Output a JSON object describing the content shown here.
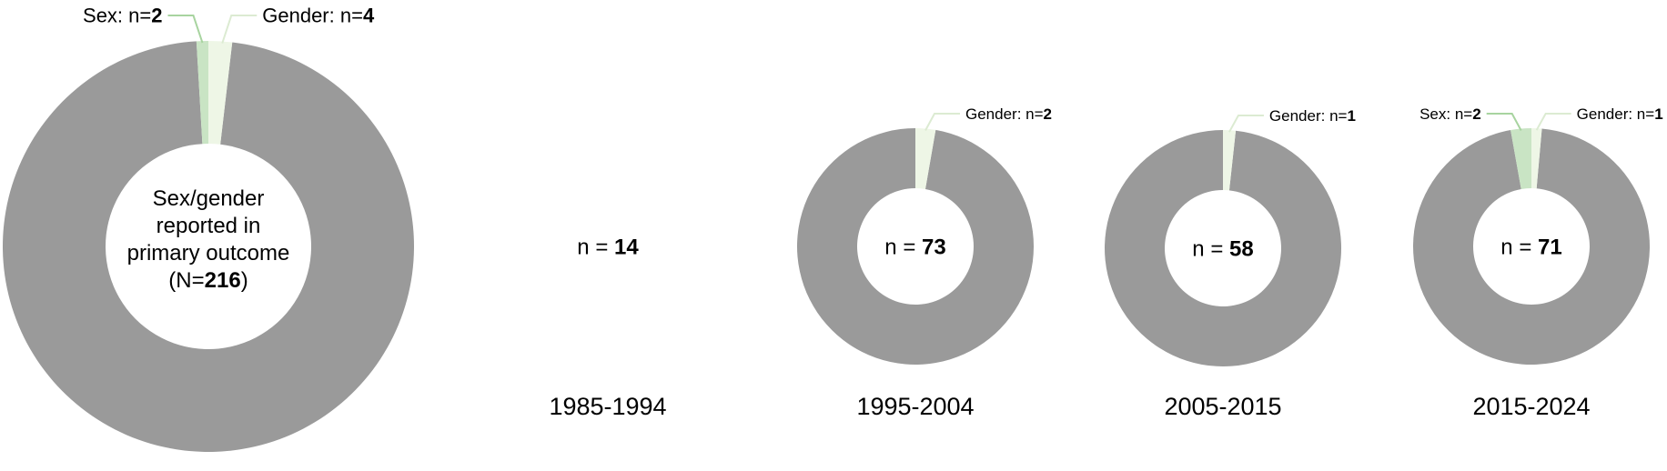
{
  "colors": {
    "other": "#9a9a9a",
    "sex": "#c9e4c4",
    "gender": "#eef6e6",
    "sex_line": "#a8d4a0",
    "gender_line": "#dcebd2",
    "hole": "#ffffff"
  },
  "chart_data": [
    {
      "type": "pie",
      "center_lines": [
        "Sex/gender",
        "reported in",
        "primary outcome"
      ],
      "center_total": {
        "prefix": "(N=",
        "value": "216",
        "suffix": ")"
      },
      "total": 216,
      "slices": [
        {
          "key": "sex",
          "prefix": "Sex: n=",
          "value": 2
        },
        {
          "key": "gender",
          "prefix": "Gender: n=",
          "value": 4
        }
      ],
      "period": ""
    },
    {
      "type": "pie",
      "center_n": {
        "prefix": "n = ",
        "value": "14"
      },
      "total": 14,
      "slices": [],
      "period": "1985-1994"
    },
    {
      "type": "pie",
      "center_n": {
        "prefix": "n = ",
        "value": "73"
      },
      "total": 73,
      "slices": [
        {
          "key": "gender",
          "prefix": "Gender: n=",
          "value": 2
        }
      ],
      "period": "1995-2004"
    },
    {
      "type": "pie",
      "center_n": {
        "prefix": "n = ",
        "value": "58"
      },
      "total": 58,
      "slices": [
        {
          "key": "gender",
          "prefix": "Gender: n=",
          "value": 1
        }
      ],
      "period": "2005-2015"
    },
    {
      "type": "pie",
      "center_n": {
        "prefix": "n = ",
        "value": "71"
      },
      "total": 71,
      "slices": [
        {
          "key": "sex",
          "prefix": "Sex: n=",
          "value": 2
        },
        {
          "key": "gender",
          "prefix": "Gender: n=",
          "value": 1
        }
      ],
      "period": "2015-2024"
    }
  ]
}
